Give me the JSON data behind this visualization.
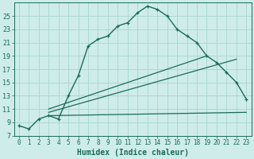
{
  "xlabel": "Humidex (Indice chaleur)",
  "background_color": "#ceecea",
  "grid_color": "#aed8d4",
  "line_color": "#1a6b5a",
  "xlim": [
    -0.5,
    23.5
  ],
  "ylim": [
    7,
    27
  ],
  "yticks": [
    7,
    9,
    11,
    13,
    15,
    17,
    19,
    21,
    23,
    25
  ],
  "xticks": [
    0,
    1,
    2,
    3,
    4,
    5,
    6,
    7,
    8,
    9,
    10,
    11,
    12,
    13,
    14,
    15,
    16,
    17,
    18,
    19,
    20,
    21,
    22,
    23
  ],
  "main_x": [
    0,
    1,
    2,
    3,
    4,
    5,
    6,
    7,
    8,
    9,
    10,
    11,
    12,
    13,
    14,
    15,
    16,
    17,
    18,
    19,
    20,
    21,
    22,
    23
  ],
  "main_y": [
    8.5,
    8.0,
    9.5,
    10.0,
    9.5,
    13.0,
    16.0,
    20.5,
    21.5,
    22.0,
    23.5,
    24.0,
    25.5,
    26.5,
    26.0,
    25.0,
    23.0,
    22.0,
    21.0,
    19.0,
    18.0,
    16.5,
    15.0,
    12.5
  ],
  "line1_x": [
    3,
    23
  ],
  "line1_y": [
    10.0,
    10.5
  ],
  "line2_x": [
    3,
    22
  ],
  "line2_y": [
    10.5,
    18.5
  ],
  "line3_x": [
    3,
    19
  ],
  "line3_y": [
    11.0,
    19.0
  ],
  "xlabel_fontsize": 7,
  "tick_fontsize": 6
}
